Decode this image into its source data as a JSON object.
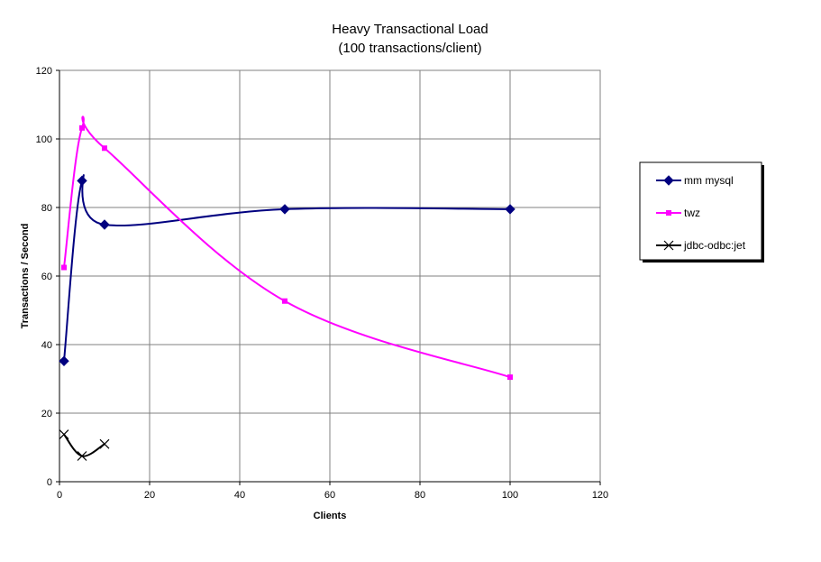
{
  "chart_data": {
    "type": "line",
    "title": "Heavy Transactional Load",
    "subtitle": "(100 transactions/client)",
    "xlabel": "Clients",
    "ylabel": "Transactions / Second",
    "xlim": [
      0,
      120
    ],
    "ylim": [
      0,
      120
    ],
    "xticks": [
      "0",
      "20",
      "40",
      "60",
      "80",
      "100",
      "120"
    ],
    "yticks": [
      "0",
      "20",
      "40",
      "60",
      "80",
      "100",
      "120"
    ],
    "grid": true,
    "legend_position": "right",
    "series": [
      {
        "name": "mm mysql",
        "color": "#000080",
        "marker": "diamond",
        "x": [
          1,
          5,
          10,
          50,
          100
        ],
        "y": [
          35.2,
          87.8,
          75.0,
          79.5,
          79.5
        ]
      },
      {
        "name": "twz",
        "color": "#ff00ff",
        "marker": "square",
        "x": [
          1,
          5,
          10,
          50,
          100
        ],
        "y": [
          62.5,
          103.2,
          97.3,
          52.7,
          30.5
        ]
      },
      {
        "name": "jdbc-odbc:jet",
        "color": "#000000",
        "marker": "x",
        "x": [
          1,
          5,
          10
        ],
        "y": [
          13.8,
          7.5,
          11.0
        ]
      }
    ]
  }
}
